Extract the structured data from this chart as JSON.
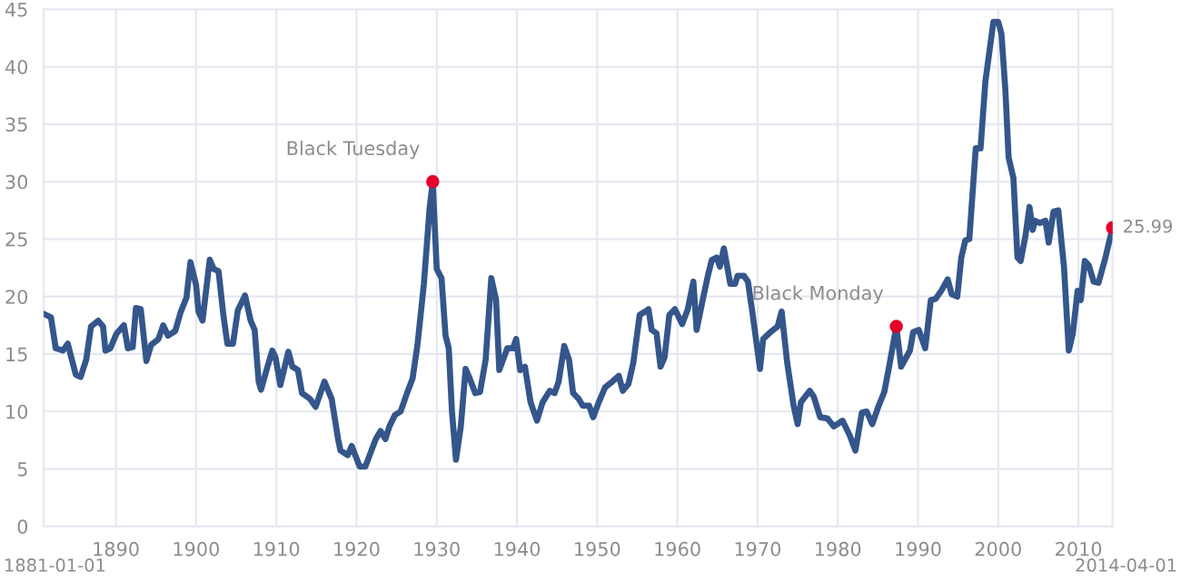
{
  "chart_data": {
    "type": "line",
    "xlim": [
      1881,
      2014.25
    ],
    "xticks": [
      1890,
      1900,
      1910,
      1920,
      1930,
      1940,
      1950,
      1960,
      1970,
      1980,
      1990,
      2000,
      2010
    ],
    "ylim": [
      0,
      45
    ],
    "yticks": [
      0,
      5,
      10,
      15,
      20,
      25,
      30,
      35,
      40,
      45
    ],
    "grid": true,
    "legend": false,
    "series": [
      {
        "color": "#34568b",
        "marker": "none",
        "line_style": "solid",
        "x": [
          1881.0,
          1881.9,
          1882.5,
          1883.4,
          1884.0,
          1885.0,
          1885.6,
          1886.3,
          1886.9,
          1887.8,
          1888.4,
          1888.7,
          1889.3,
          1890.1,
          1891.0,
          1891.5,
          1892.1,
          1892.5,
          1893.1,
          1893.8,
          1894.4,
          1895.3,
          1895.9,
          1896.5,
          1897.4,
          1898.1,
          1898.8,
          1899.3,
          1900.0,
          1900.3,
          1900.8,
          1901.7,
          1902.2,
          1902.8,
          1903.4,
          1903.9,
          1904.6,
          1905.2,
          1906.1,
          1906.8,
          1907.3,
          1907.8,
          1908.1,
          1908.9,
          1909.5,
          1909.9,
          1910.5,
          1911.5,
          1912.0,
          1912.7,
          1913.2,
          1914.2,
          1914.9,
          1916.0,
          1916.9,
          1917.7,
          1918.0,
          1918.9,
          1919.4,
          1920.4,
          1921.1,
          1922.4,
          1923.0,
          1923.6,
          1924.1,
          1924.8,
          1925.5,
          1926.3,
          1927.0,
          1927.6,
          1928.4,
          1929.1,
          1929.5,
          1930.0,
          1930.6,
          1931.1,
          1931.5,
          1931.9,
          1932.4,
          1933.0,
          1933.6,
          1934.1,
          1934.8,
          1935.4,
          1936.1,
          1936.8,
          1937.4,
          1937.8,
          1938.8,
          1939.5,
          1939.9,
          1940.4,
          1941.0,
          1941.7,
          1942.5,
          1943.2,
          1944.1,
          1944.7,
          1945.2,
          1945.9,
          1946.5,
          1947.0,
          1947.7,
          1948.2,
          1949.0,
          1949.5,
          1950.2,
          1951.0,
          1951.9,
          1952.7,
          1953.2,
          1953.9,
          1954.5,
          1955.3,
          1956.0,
          1956.4,
          1956.8,
          1957.4,
          1957.9,
          1958.4,
          1959.0,
          1959.7,
          1960.6,
          1961.3,
          1962.0,
          1962.4,
          1963.1,
          1963.8,
          1964.3,
          1964.9,
          1965.3,
          1965.8,
          1966.6,
          1967.2,
          1967.5,
          1968.3,
          1968.8,
          1969.4,
          1970.3,
          1970.7,
          1971.6,
          1972.5,
          1973.0,
          1973.7,
          1974.5,
          1975.0,
          1975.4,
          1976.5,
          1977.0,
          1977.8,
          1978.7,
          1979.5,
          1980.6,
          1981.5,
          1982.2,
          1983.0,
          1983.6,
          1984.3,
          1985.1,
          1985.8,
          1986.4,
          1987.3,
          1987.9,
          1989.0,
          1989.4,
          1990.1,
          1990.9,
          1991.6,
          1992.2,
          1992.9,
          1993.7,
          1994.2,
          1994.9,
          1995.4,
          1995.9,
          1996.4,
          1997.2,
          1997.8,
          1998.4,
          1998.9,
          1999.4,
          2000.0,
          2000.4,
          2000.9,
          2001.3,
          2001.9,
          2002.4,
          2002.8,
          2003.4,
          2003.9,
          2004.3,
          2004.6,
          2005.2,
          2005.9,
          2006.3,
          2006.9,
          2007.5,
          2008.2,
          2008.8,
          2009.3,
          2009.9,
          2010.3,
          2010.8,
          2011.3,
          2011.9,
          2012.5,
          2013.3,
          2014.25
        ],
        "values": [
          18.5,
          18.2,
          15.5,
          15.3,
          15.9,
          13.2,
          13.0,
          14.5,
          17.4,
          17.9,
          17.4,
          15.3,
          15.5,
          16.8,
          17.5,
          15.5,
          15.6,
          19.0,
          18.9,
          14.4,
          15.8,
          16.3,
          17.5,
          16.6,
          17.0,
          18.7,
          19.9,
          23.0,
          21.0,
          18.7,
          17.9,
          23.2,
          22.4,
          22.2,
          18.4,
          15.9,
          15.9,
          18.8,
          20.1,
          17.9,
          17.1,
          12.6,
          11.9,
          13.9,
          15.3,
          14.7,
          12.3,
          15.2,
          13.9,
          13.6,
          11.6,
          11.1,
          10.4,
          12.6,
          11.1,
          7.6,
          6.6,
          6.2,
          7.0,
          5.2,
          5.2,
          7.6,
          8.3,
          7.6,
          8.7,
          9.7,
          10.0,
          11.6,
          12.9,
          15.8,
          21.1,
          27.6,
          30.0,
          22.4,
          21.6,
          16.6,
          15.5,
          10.0,
          5.8,
          8.7,
          13.7,
          12.9,
          11.6,
          11.7,
          14.5,
          21.6,
          19.7,
          13.6,
          15.5,
          15.5,
          16.3,
          13.6,
          13.9,
          10.8,
          9.2,
          10.8,
          11.8,
          11.6,
          12.6,
          15.7,
          14.5,
          11.6,
          11.1,
          10.5,
          10.5,
          9.5,
          10.8,
          12.1,
          12.6,
          13.1,
          11.8,
          12.4,
          14.2,
          18.4,
          18.7,
          18.9,
          17.1,
          16.8,
          13.9,
          14.7,
          18.4,
          18.9,
          17.6,
          18.9,
          21.3,
          17.1,
          19.5,
          21.8,
          23.2,
          23.4,
          22.6,
          24.2,
          21.1,
          21.1,
          21.8,
          21.8,
          21.3,
          18.4,
          13.7,
          16.3,
          16.9,
          17.4,
          18.7,
          14.2,
          10.5,
          8.9,
          10.8,
          11.8,
          11.3,
          9.5,
          9.4,
          8.7,
          9.2,
          7.9,
          6.6,
          9.9,
          10.0,
          8.9,
          10.5,
          11.7,
          13.9,
          17.4,
          13.9,
          15.3,
          16.9,
          17.1,
          15.5,
          19.7,
          19.8,
          20.5,
          21.5,
          20.2,
          20.0,
          23.4,
          24.9,
          25.0,
          32.9,
          32.9,
          38.7,
          41.3,
          43.9,
          43.9,
          42.9,
          37.9,
          32.1,
          30.3,
          23.4,
          23.1,
          25.3,
          27.8,
          25.8,
          26.6,
          26.4,
          26.6,
          24.7,
          27.4,
          27.5,
          22.6,
          15.3,
          16.8,
          20.5,
          19.7,
          23.1,
          22.7,
          21.3,
          21.2,
          23.2,
          25.99
        ]
      },
      {
        "type": "scatter",
        "color": "#e4002b",
        "marker": "circle",
        "x": [
          1929.5,
          1987.3,
          2014.25
        ],
        "values": [
          30.0,
          17.4,
          25.99
        ]
      }
    ],
    "annotations": [
      {
        "text": "Black Tuesday",
        "x": 1929.5,
        "y": 30.0
      },
      {
        "text": "Black Monday",
        "x": 1987.3,
        "y": 17.4
      },
      {
        "text": "25.99",
        "x": 2014.25,
        "y": 25.99
      },
      "1881-01-01",
      "2014-04-01"
    ]
  }
}
